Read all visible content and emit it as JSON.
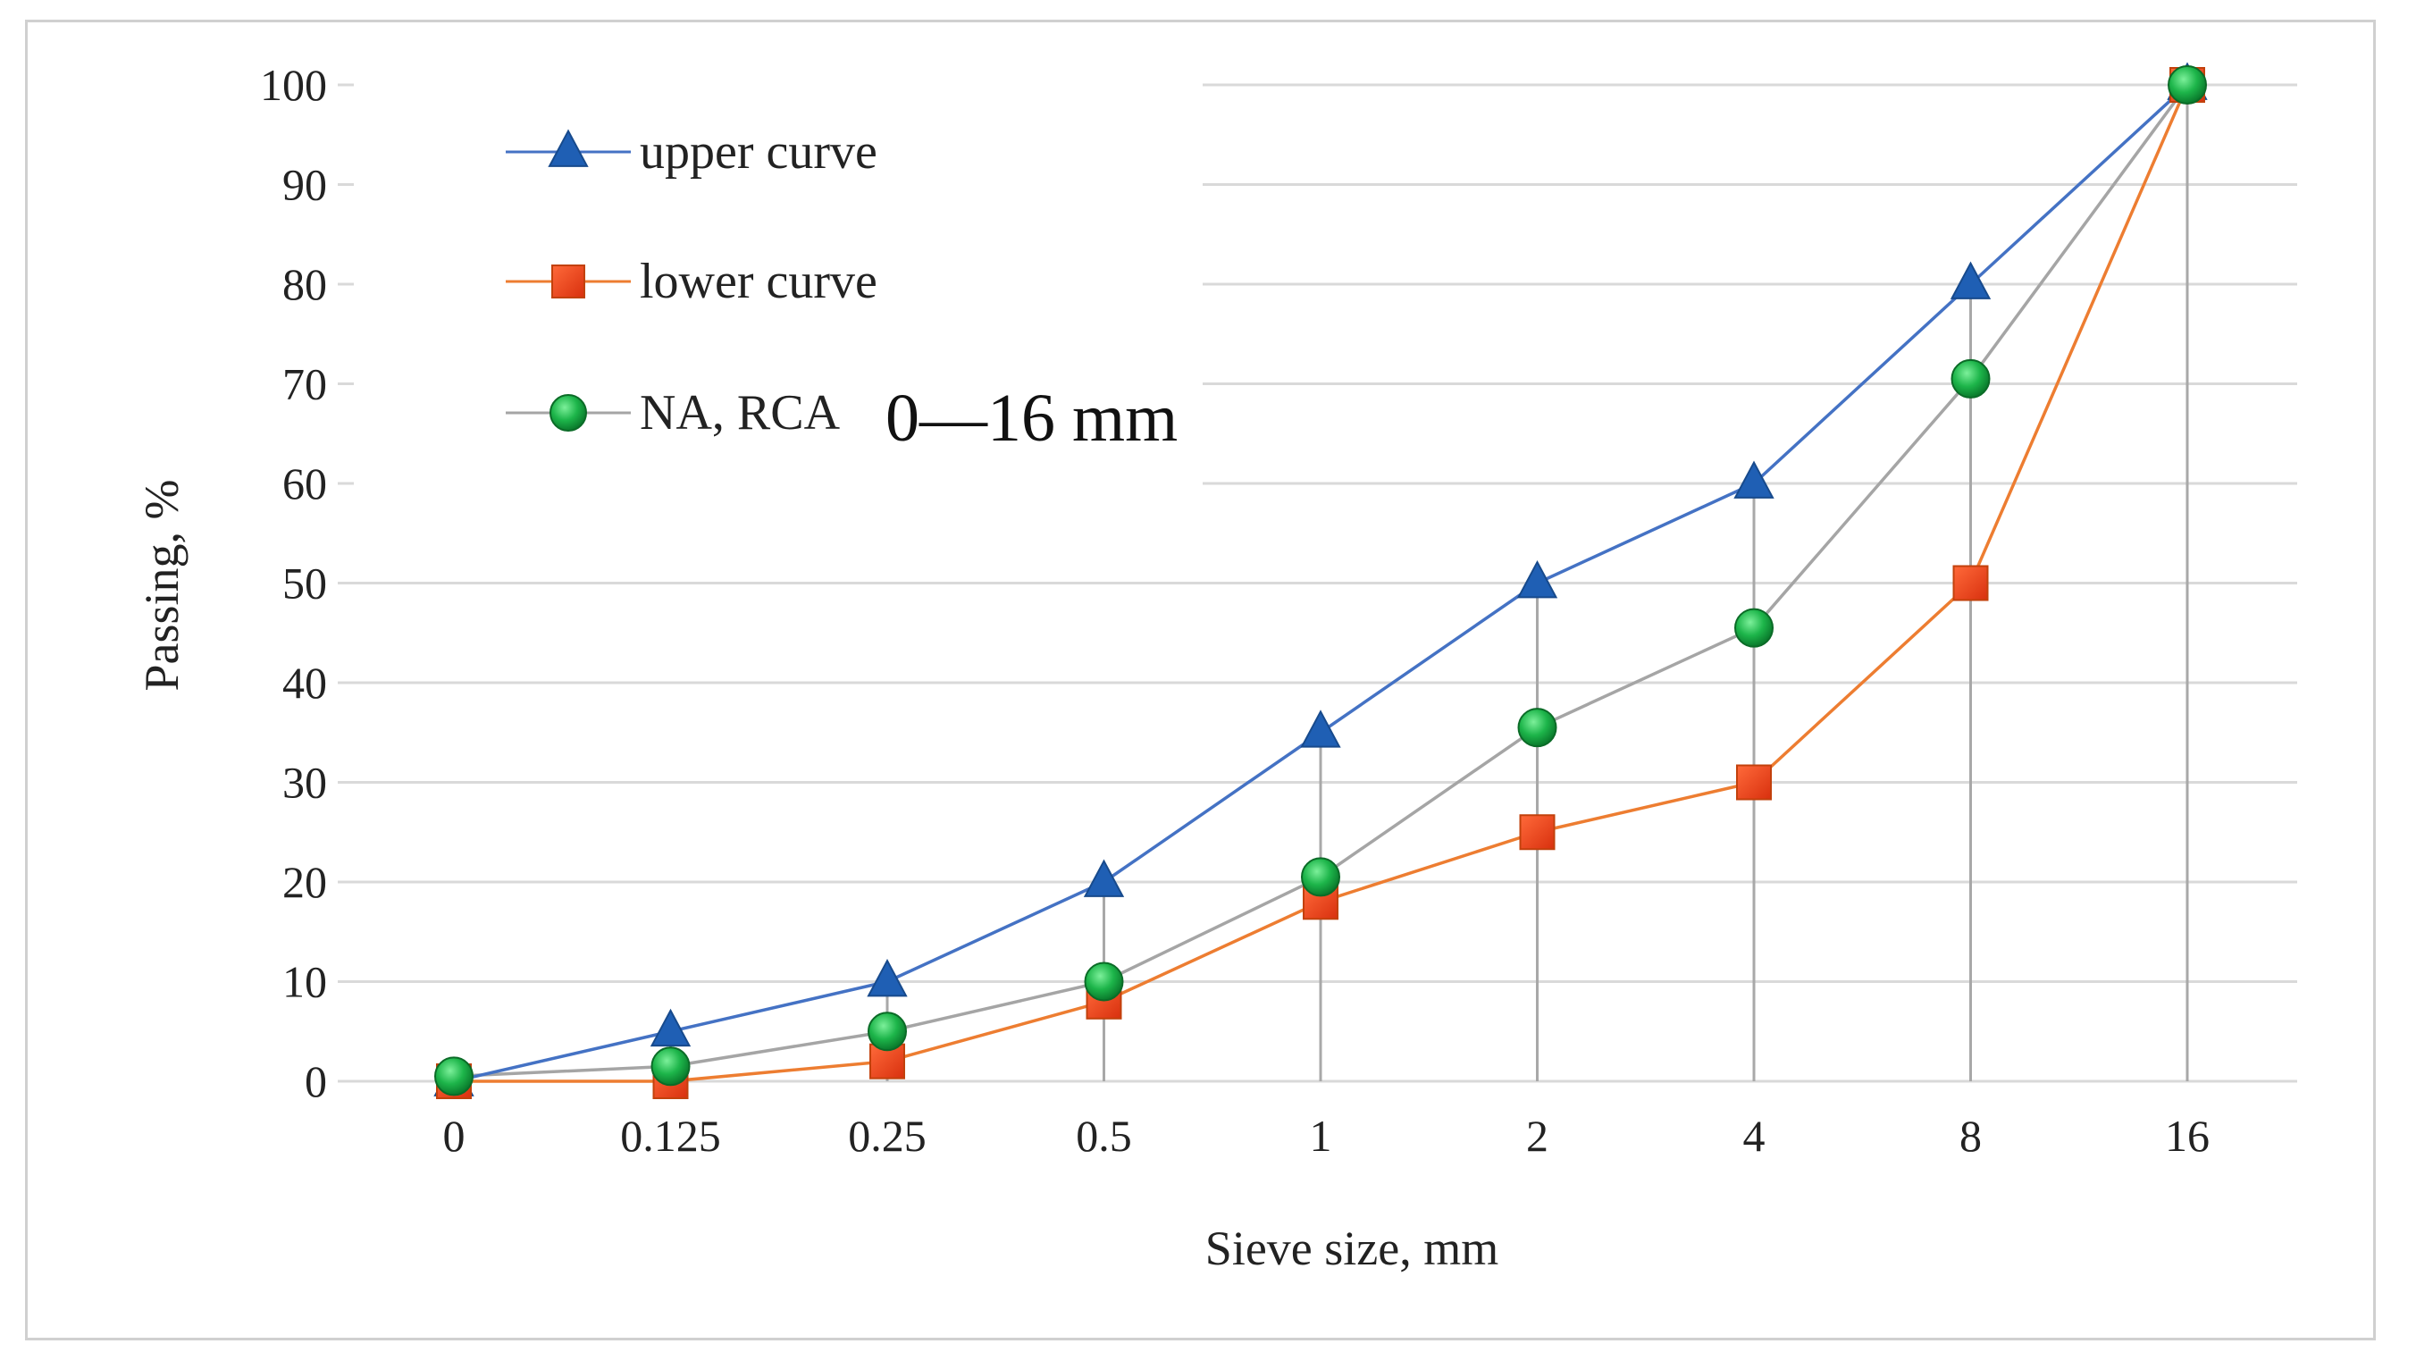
{
  "chart_data": {
    "type": "line",
    "title": "",
    "xlabel": "Sieve size, mm",
    "ylabel": "Passing, %",
    "categories": [
      "0",
      "0.125",
      "0.25",
      "0.5",
      "1",
      "2",
      "4",
      "8",
      "16"
    ],
    "ylim": [
      0,
      100
    ],
    "yticks": [
      0,
      10,
      20,
      30,
      40,
      50,
      60,
      70,
      80,
      90,
      100
    ],
    "ytick_labels": [
      "0",
      "10",
      "20",
      "30",
      "40",
      "50",
      "60",
      "70",
      "80",
      "90",
      "100"
    ],
    "grid": "horizontal",
    "drop_lines": true,
    "legend_position": "top-left",
    "series": [
      {
        "name": "upper curve",
        "marker": "triangle",
        "line_color": "#4472c4",
        "marker_color": "#1f5fb4",
        "values": [
          0,
          5,
          10,
          20,
          35,
          50,
          60,
          80,
          100
        ]
      },
      {
        "name": "lower curve",
        "marker": "square",
        "line_color": "#ed7d31",
        "marker_color": "#e8401c",
        "values": [
          0,
          0,
          2,
          8,
          18,
          25,
          30,
          50,
          100
        ]
      },
      {
        "name": "NA, RCA",
        "name_suffix": "0—16 mm",
        "marker": "circle",
        "line_color": "#a5a5a5",
        "marker_color": "#1db54a",
        "values": [
          0.5,
          1.5,
          5,
          10,
          20.5,
          35.5,
          45.5,
          70.5,
          100
        ]
      }
    ]
  }
}
